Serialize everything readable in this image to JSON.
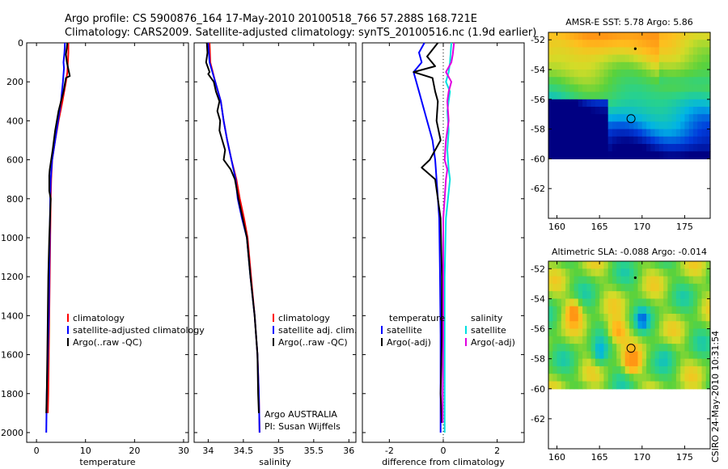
{
  "header": {
    "line1": "Argo profile: CS 5900876_164 17-May-2010 20100518_766 57.288S 168.721E",
    "line2": "Climatology: CARS2009. Satellite-adjusted climatology: synTS_20100516.nc (1.9d earlier)"
  },
  "credit": "CSIRO 24-May-2010 10:31:54",
  "depth_axis": {
    "ticks": [
      0,
      200,
      400,
      600,
      800,
      1000,
      1200,
      1400,
      1600,
      1800,
      2000
    ],
    "range": [
      2050,
      0
    ]
  },
  "colors": {
    "climatology": "#ff0000",
    "satellite": "#0000ff",
    "argo": "#000000",
    "sat_diff_s": "#00e0e0",
    "argo_diff_s": "#e000e0"
  },
  "chart_data": [
    {
      "type": "line",
      "name": "temperature-panel",
      "xlabel": "temperature",
      "xlim": [
        -2,
        31
      ],
      "xticks": [
        0,
        10,
        20,
        30
      ],
      "legend": [
        "climatology",
        "satellite-adjusted climatology",
        "Argo(..raw -QC)"
      ],
      "series": [
        {
          "name": "climatology",
          "color": "#ff0000",
          "points": [
            [
              6.5,
              0
            ],
            [
              6.5,
              50
            ],
            [
              6.4,
              100
            ],
            [
              6.3,
              150
            ],
            [
              6.0,
              200
            ],
            [
              5.3,
              300
            ],
            [
              4.5,
              400
            ],
            [
              3.8,
              500
            ],
            [
              3.2,
              600
            ],
            [
              3.0,
              700
            ],
            [
              2.9,
              800
            ],
            [
              2.8,
              1000
            ],
            [
              2.7,
              1200
            ],
            [
              2.6,
              1400
            ],
            [
              2.5,
              1600
            ],
            [
              2.4,
              1800
            ],
            [
              2.3,
              1900
            ]
          ]
        },
        {
          "name": "satellite-adjusted climatology",
          "color": "#0000ff",
          "points": [
            [
              5.8,
              0
            ],
            [
              5.7,
              50
            ],
            [
              5.5,
              100
            ],
            [
              5.6,
              130
            ],
            [
              5.4,
              200
            ],
            [
              5.0,
              300
            ],
            [
              4.4,
              400
            ],
            [
              3.8,
              500
            ],
            [
              3.2,
              600
            ],
            [
              2.9,
              700
            ],
            [
              2.8,
              800
            ],
            [
              2.7,
              1000
            ],
            [
              2.6,
              1200
            ],
            [
              2.5,
              1400
            ],
            [
              2.3,
              1600
            ],
            [
              2.1,
              1800
            ],
            [
              2.0,
              2000
            ]
          ]
        },
        {
          "name": "Argo(..raw -QC)",
          "color": "#000000",
          "points": [
            [
              6.3,
              0
            ],
            [
              6.0,
              60
            ],
            [
              6.2,
              100
            ],
            [
              6.8,
              170
            ],
            [
              6.0,
              180
            ],
            [
              5.5,
              250
            ],
            [
              4.5,
              350
            ],
            [
              3.8,
              450
            ],
            [
              3.3,
              550
            ],
            [
              2.7,
              650
            ],
            [
              2.6,
              680
            ],
            [
              2.6,
              760
            ],
            [
              2.9,
              800
            ],
            [
              2.6,
              1000
            ],
            [
              2.4,
              1200
            ],
            [
              2.3,
              1400
            ],
            [
              2.2,
              1600
            ],
            [
              2.1,
              1800
            ],
            [
              2.0,
              1900
            ]
          ]
        }
      ]
    },
    {
      "type": "line",
      "name": "salinity-panel",
      "xlabel": "salinity",
      "xlim": [
        33.8,
        36.1
      ],
      "xticks": [
        34,
        34.5,
        35,
        35.5,
        36
      ],
      "legend": [
        "climatology",
        "satellite adj. clim.",
        "Argo(..raw -QC)"
      ],
      "annotations": [
        "Argo AUSTRALIA",
        "PI: Susan Wijffels"
      ],
      "series": [
        {
          "name": "climatology",
          "color": "#ff0000",
          "points": [
            [
              34.02,
              0
            ],
            [
              34.03,
              100
            ],
            [
              34.1,
              200
            ],
            [
              34.18,
              300
            ],
            [
              34.22,
              400
            ],
            [
              34.27,
              500
            ],
            [
              34.33,
              600
            ],
            [
              34.4,
              700
            ],
            [
              34.45,
              800
            ],
            [
              34.51,
              900
            ],
            [
              34.56,
              1000
            ],
            [
              34.61,
              1200
            ],
            [
              34.66,
              1400
            ],
            [
              34.7,
              1600
            ],
            [
              34.72,
              1800
            ],
            [
              34.73,
              2000
            ]
          ]
        },
        {
          "name": "satellite adj. clim.",
          "color": "#0000ff",
          "points": [
            [
              34.0,
              0
            ],
            [
              34.02,
              100
            ],
            [
              34.1,
              200
            ],
            [
              34.18,
              300
            ],
            [
              34.22,
              400
            ],
            [
              34.27,
              500
            ],
            [
              34.33,
              600
            ],
            [
              34.39,
              700
            ],
            [
              34.42,
              800
            ],
            [
              34.48,
              900
            ],
            [
              34.55,
              1000
            ],
            [
              34.6,
              1200
            ],
            [
              34.66,
              1400
            ],
            [
              34.7,
              1600
            ],
            [
              34.72,
              1800
            ],
            [
              34.73,
              2000
            ]
          ]
        },
        {
          "name": "Argo(..raw -QC)",
          "color": "#000000",
          "points": [
            [
              33.98,
              0
            ],
            [
              33.99,
              50
            ],
            [
              33.97,
              100
            ],
            [
              34.02,
              150
            ],
            [
              34.0,
              160
            ],
            [
              34.08,
              200
            ],
            [
              34.11,
              250
            ],
            [
              34.16,
              300
            ],
            [
              34.13,
              350
            ],
            [
              34.17,
              400
            ],
            [
              34.16,
              450
            ],
            [
              34.2,
              500
            ],
            [
              34.24,
              550
            ],
            [
              34.22,
              600
            ],
            [
              34.32,
              650
            ],
            [
              34.38,
              700
            ],
            [
              34.43,
              800
            ],
            [
              34.49,
              900
            ],
            [
              34.55,
              1000
            ],
            [
              34.6,
              1200
            ],
            [
              34.66,
              1400
            ],
            [
              34.7,
              1600
            ],
            [
              34.71,
              1800
            ],
            [
              34.72,
              1900
            ]
          ]
        }
      ]
    },
    {
      "type": "line",
      "name": "difference-panel",
      "xlabel": "difference from climatology",
      "xlim": [
        -3,
        3
      ],
      "xticks": [
        -2,
        0,
        2
      ],
      "legend": [
        "temperature",
        "satellite",
        "Argo(-adj)",
        "salinity",
        "satellite",
        "Argo(-adj)"
      ],
      "series": [
        {
          "name": "temperature satellite",
          "color": "#0000ff",
          "points": [
            [
              -0.7,
              0
            ],
            [
              -0.9,
              50
            ],
            [
              -0.8,
              100
            ],
            [
              -1.1,
              150
            ],
            [
              -0.9,
              250
            ],
            [
              -0.6,
              400
            ],
            [
              -0.4,
              500
            ],
            [
              -0.3,
              600
            ],
            [
              -0.25,
              700
            ],
            [
              -0.15,
              900
            ],
            [
              -0.12,
              1200
            ],
            [
              -0.1,
              1500
            ],
            [
              -0.1,
              1800
            ],
            [
              -0.1,
              2000
            ]
          ]
        },
        {
          "name": "temperature Argo(-adj)",
          "color": "#000000",
          "points": [
            [
              -0.2,
              0
            ],
            [
              -0.6,
              70
            ],
            [
              -0.3,
              120
            ],
            [
              -1.1,
              150
            ],
            [
              -0.4,
              180
            ],
            [
              -0.3,
              250
            ],
            [
              -0.2,
              300
            ],
            [
              -0.25,
              400
            ],
            [
              -0.1,
              500
            ],
            [
              -0.5,
              600
            ],
            [
              -0.8,
              640
            ],
            [
              -0.3,
              700
            ],
            [
              -0.2,
              800
            ],
            [
              -0.1,
              900
            ],
            [
              -0.05,
              1200
            ],
            [
              -0.05,
              1500
            ],
            [
              -0.1,
              1800
            ],
            [
              -0.05,
              1950
            ]
          ]
        },
        {
          "name": "salinity satellite",
          "color": "#00e0e0",
          "points": [
            [
              0.3,
              0
            ],
            [
              0.25,
              100
            ],
            [
              0.2,
              150
            ],
            [
              0.1,
              200
            ],
            [
              0.25,
              250
            ],
            [
              0.15,
              350
            ],
            [
              0.2,
              450
            ],
            [
              0.15,
              550
            ],
            [
              0.2,
              650
            ],
            [
              0.25,
              700
            ],
            [
              0.1,
              900
            ],
            [
              0.05,
              1200
            ],
            [
              0.05,
              1500
            ],
            [
              0.05,
              1800
            ],
            [
              0.05,
              2000
            ]
          ]
        },
        {
          "name": "salinity Argo(-adj)",
          "color": "#e000e0",
          "points": [
            [
              0.4,
              0
            ],
            [
              0.35,
              60
            ],
            [
              0.3,
              100
            ],
            [
              0.1,
              150
            ],
            [
              0.3,
              200
            ],
            [
              0.2,
              250
            ],
            [
              0.15,
              300
            ],
            [
              0.2,
              400
            ],
            [
              0.1,
              500
            ],
            [
              0.05,
              600
            ],
            [
              0.15,
              650
            ],
            [
              0.1,
              700
            ],
            [
              0.05,
              800
            ],
            [
              0.0,
              900
            ],
            [
              0.0,
              1200
            ],
            [
              0.0,
              1500
            ],
            [
              -0.02,
              1800
            ],
            [
              -0.02,
              1950
            ]
          ]
        }
      ]
    },
    {
      "type": "heatmap",
      "name": "sst-map",
      "title": "AMSR-E SST: 5.78 Argo: 5.86",
      "xticks": [
        160,
        165,
        170,
        175
      ],
      "yticks": [
        -52,
        -54,
        -56,
        -58,
        -60,
        -62
      ],
      "xlim": [
        159,
        178
      ],
      "ylim": [
        -64,
        -51.5
      ],
      "data_extent_lat": [
        -60,
        -51.5
      ],
      "marker_float": [
        168.7,
        -57.3
      ],
      "marker_dot": [
        169.2,
        -52.6
      ]
    },
    {
      "type": "heatmap",
      "name": "sla-map",
      "title": "Altimetric SLA: -0.088 Argo: -0.014",
      "xticks": [
        160,
        165,
        170,
        175
      ],
      "yticks": [
        -52,
        -54,
        -56,
        -58,
        -60,
        -62
      ],
      "xlim": [
        159,
        178
      ],
      "ylim": [
        -64,
        -51.5
      ],
      "data_extent_lat": [
        -60,
        -51.5
      ],
      "marker_float": [
        168.7,
        -57.3
      ],
      "marker_dot": [
        169.2,
        -52.6
      ]
    }
  ]
}
